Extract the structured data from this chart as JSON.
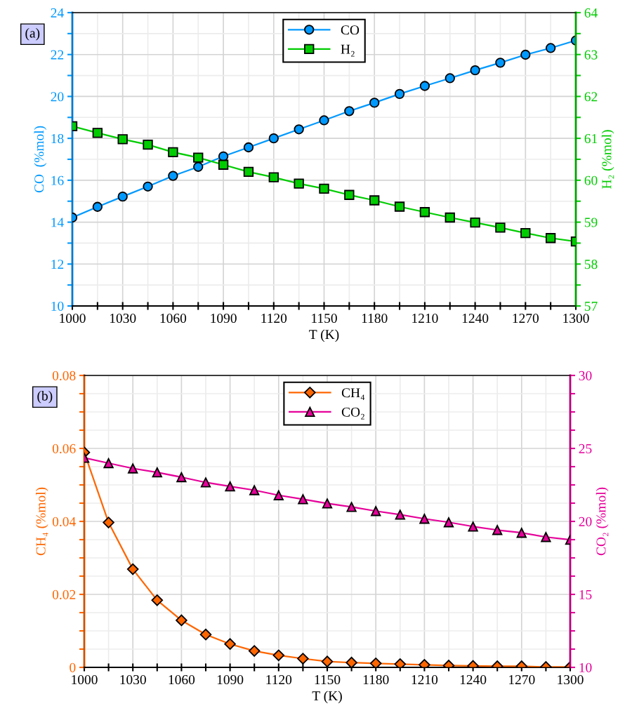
{
  "chart_data": [
    {
      "type": "line",
      "xlabel": "T (K)",
      "ylabel": "CO  (%mol)",
      "y2label": "H₂ (%mol)",
      "annotations": [
        "(a)"
      ],
      "legend": "top",
      "grid": true,
      "x": [
        1000,
        1015,
        1030,
        1045,
        1060,
        1075,
        1090,
        1105,
        1120,
        1135,
        1150,
        1165,
        1180,
        1195,
        1210,
        1225,
        1240,
        1255,
        1270,
        1285,
        1300
      ],
      "xlim": [
        1000,
        1300
      ],
      "xticks": [
        1000,
        {
          "value": 1015,
          "label": null
        },
        1030,
        {
          "value": 1045,
          "label": null
        },
        1060,
        {
          "value": 1075,
          "label": null
        },
        1090,
        {
          "value": 1105,
          "label": null
        },
        1120,
        {
          "value": 1135,
          "label": null
        },
        1150,
        {
          "value": 1165,
          "label": null
        },
        1180,
        {
          "value": 1195,
          "label": null
        },
        1210,
        {
          "value": 1225,
          "label": null
        },
        1240,
        {
          "value": 1255,
          "label": null
        },
        1270,
        {
          "value": 1285,
          "label": null
        },
        1300
      ],
      "ylim": [
        10,
        24
      ],
      "yticks": [
        10,
        {
          "value": 11,
          "label": null
        },
        12,
        {
          "value": 13,
          "label": null
        },
        14,
        {
          "value": 15,
          "label": null
        },
        16,
        {
          "value": 17,
          "label": null
        },
        18,
        {
          "value": 19,
          "label": null
        },
        20,
        {
          "value": 21,
          "label": null
        },
        22,
        {
          "value": 23,
          "label": null
        },
        24
      ],
      "y2lim": [
        57,
        64
      ],
      "y2ticks": [
        57,
        {
          "value": 57.5,
          "label": null
        },
        58,
        {
          "value": 58.5,
          "label": null
        },
        59,
        {
          "value": 59.5,
          "label": null
        },
        60,
        {
          "value": 60.5,
          "label": null
        },
        61,
        {
          "value": 61.5,
          "label": null
        },
        62,
        {
          "value": 62.5,
          "label": null
        },
        63,
        {
          "value": 63.5,
          "label": null
        },
        64
      ],
      "series": [
        {
          "name": "CO",
          "color": "#0099ff",
          "marker": "circle",
          "values": [
            14.22,
            14.73,
            15.22,
            15.7,
            16.21,
            16.64,
            17.14,
            17.57,
            18.0,
            18.43,
            18.86,
            19.3,
            19.7,
            20.12,
            20.5,
            20.87,
            21.25,
            21.61,
            21.99,
            22.31,
            22.67
          ]
        },
        {
          "name": "H₂",
          "color": "#00cc00",
          "marker": "square",
          "axis": "y2",
          "values": [
            61.29,
            61.13,
            60.98,
            60.85,
            60.67,
            60.54,
            60.37,
            60.2,
            60.07,
            59.92,
            59.8,
            59.65,
            59.52,
            59.37,
            59.24,
            59.11,
            58.99,
            58.87,
            58.74,
            58.62,
            58.54
          ]
        }
      ]
    },
    {
      "type": "line",
      "xlabel": "T (K)",
      "ylabel": "CH₄ (%mol)",
      "y2label": "CO₂ (%mol)",
      "annotations": [
        "(b)"
      ],
      "legend": "top",
      "grid": true,
      "x": [
        1000,
        1015,
        1030,
        1045,
        1060,
        1075,
        1090,
        1105,
        1120,
        1135,
        1150,
        1165,
        1180,
        1195,
        1210,
        1225,
        1240,
        1255,
        1270,
        1285,
        1300
      ],
      "xlim": [
        1000,
        1300
      ],
      "xticks": [
        1000,
        {
          "value": 1015,
          "label": null
        },
        1030,
        {
          "value": 1045,
          "label": null
        },
        1060,
        {
          "value": 1075,
          "label": null
        },
        1090,
        {
          "value": 1105,
          "label": null
        },
        1120,
        {
          "value": 1135,
          "label": null
        },
        1150,
        {
          "value": 1165,
          "label": null
        },
        1180,
        {
          "value": 1195,
          "label": null
        },
        1210,
        {
          "value": 1225,
          "label": null
        },
        1240,
        {
          "value": 1255,
          "label": null
        },
        1270,
        {
          "value": 1285,
          "label": null
        },
        1300
      ],
      "ylim": [
        0,
        0.08
      ],
      "yticks": [
        {
          "value": 0,
          "label": "0"
        },
        {
          "value": 0.005,
          "label": null
        },
        {
          "value": 0.01,
          "label": null
        },
        {
          "value": 0.015,
          "label": null
        },
        0.02,
        {
          "value": 0.025,
          "label": null
        },
        {
          "value": 0.03,
          "label": null
        },
        {
          "value": 0.035,
          "label": null
        },
        0.04,
        {
          "value": 0.045,
          "label": null
        },
        {
          "value": 0.05,
          "label": null
        },
        {
          "value": 0.055,
          "label": null
        },
        0.06,
        {
          "value": 0.065,
          "label": null
        },
        {
          "value": 0.07,
          "label": null
        },
        {
          "value": 0.075,
          "label": null
        },
        0.08
      ],
      "y2lim": [
        10,
        30
      ],
      "y2ticks": [
        10,
        {
          "value": 11.25,
          "label": null
        },
        {
          "value": 12.5,
          "label": null
        },
        {
          "value": 13.75,
          "label": null
        },
        15,
        {
          "value": 16.25,
          "label": null
        },
        {
          "value": 17.5,
          "label": null
        },
        {
          "value": 18.75,
          "label": null
        },
        20,
        {
          "value": 21.25,
          "label": null
        },
        {
          "value": 22.5,
          "label": null
        },
        {
          "value": 23.75,
          "label": null
        },
        25,
        {
          "value": 26.25,
          "label": null
        },
        {
          "value": 27.5,
          "label": null
        },
        {
          "value": 28.75,
          "label": null
        },
        30
      ],
      "series": [
        {
          "name": "CH₄",
          "color": "#ff6600",
          "marker": "diamond",
          "values": [
            0.0589,
            0.0397,
            0.0269,
            0.0184,
            0.0129,
            0.009,
            0.0064,
            0.0045,
            0.0033,
            0.0024,
            0.0016,
            0.0013,
            0.0011,
            0.0009,
            0.0007,
            0.0005,
            0.0004,
            0.0003,
            0.0003,
            0.0001,
            0.0001
          ]
        },
        {
          "name": "CO₂",
          "color": "#e6009a",
          "marker": "triangle",
          "axis": "y2",
          "values": [
            24.36,
            23.99,
            23.63,
            23.36,
            23.03,
            22.67,
            22.4,
            22.14,
            21.79,
            21.52,
            21.23,
            20.99,
            20.71,
            20.46,
            20.18,
            19.94,
            19.65,
            19.41,
            19.22,
            18.93,
            18.74
          ]
        }
      ]
    }
  ]
}
